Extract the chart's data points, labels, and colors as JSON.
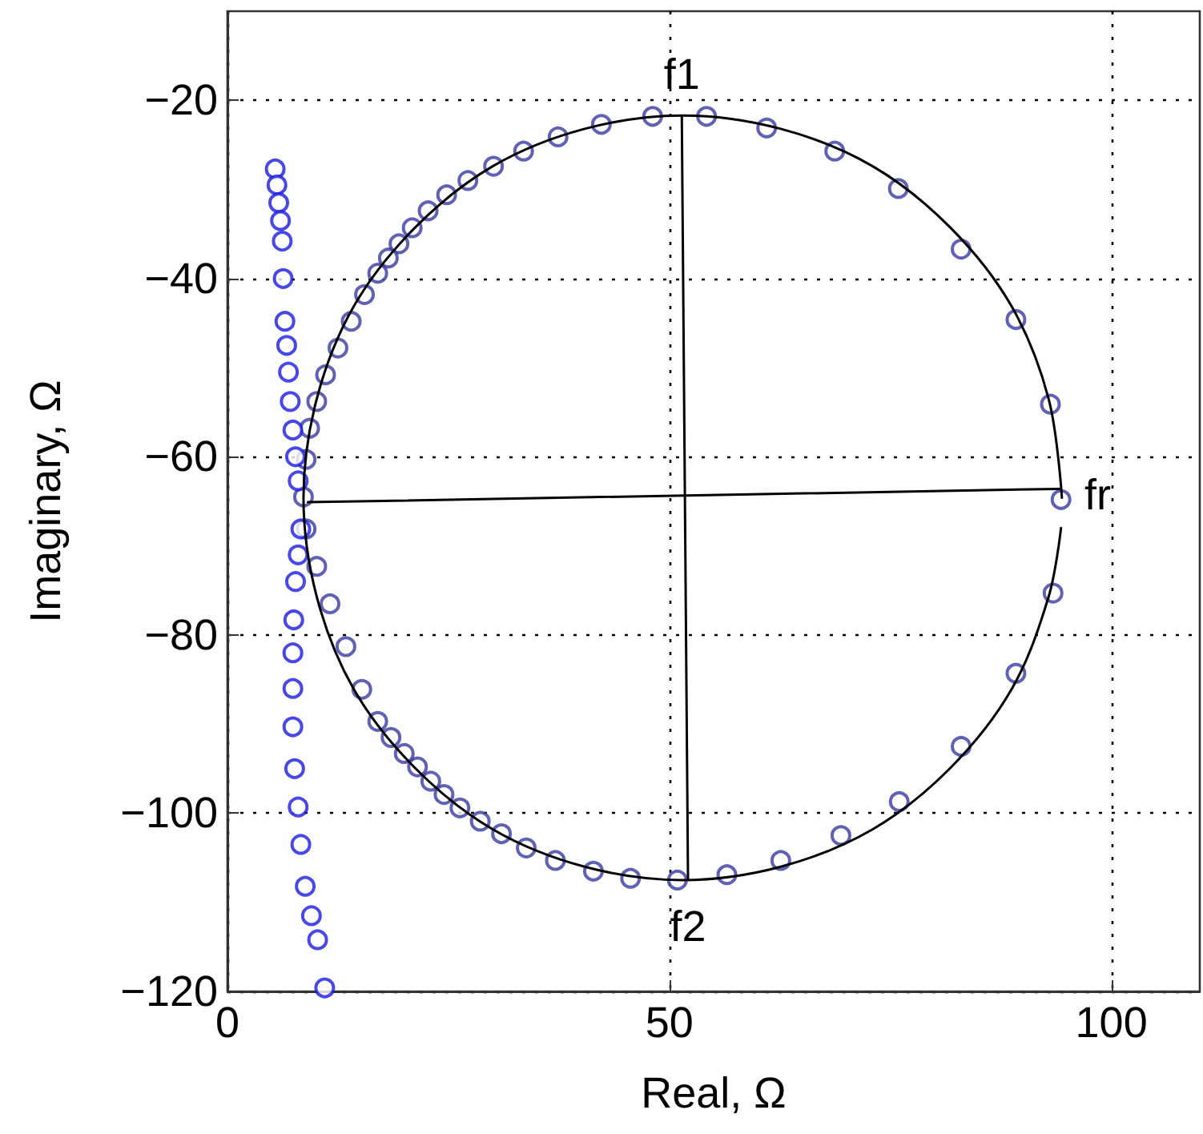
{
  "chart_data": {
    "type": "scatter",
    "xlabel": "Real, Ω",
    "ylabel": "Imaginary, Ω",
    "xlim": [
      0,
      110
    ],
    "xticks": [
      0,
      50,
      100
    ],
    "ylim": [
      -120,
      -10
    ],
    "yticks": [
      -120,
      -100,
      -80,
      -60,
      -40,
      -20
    ],
    "grid": true,
    "marker": "circle",
    "series": [
      {
        "color": "#3a3aa0",
        "x": [
          48.1,
          54.2,
          42.3,
          37.4,
          33.5,
          30.1,
          27.2,
          24.8,
          22.7,
          20.9,
          19.4,
          18.2,
          17.0,
          15.5,
          14.0,
          12.5,
          11.1,
          10.1,
          9.3,
          8.9,
          8.6,
          61.0,
          68.7,
          75.9,
          83.0,
          89.2,
          93.1,
          94.3,
          93.4,
          89.2,
          83.0,
          76.0,
          69.4,
          62.6,
          56.5,
          50.9,
          45.6,
          41.4,
          37.1,
          33.8,
          31.0,
          28.6,
          26.3,
          24.5,
          23.0,
          21.5,
          20.0,
          18.5,
          17.0,
          15.2,
          13.4,
          11.6,
          10.1,
          8.9
        ],
        "values": [
          -21.8,
          -21.8,
          -22.7,
          -24.1,
          -25.7,
          -27.4,
          -29.0,
          -30.6,
          -32.4,
          -34.3,
          -36.1,
          -37.7,
          -39.4,
          -41.8,
          -44.8,
          -47.8,
          -50.8,
          -53.8,
          -56.8,
          -60.3,
          -64.5,
          -23.1,
          -25.7,
          -29.9,
          -36.7,
          -44.6,
          -54.1,
          -64.8,
          -75.3,
          -84.3,
          -92.5,
          -98.7,
          -102.5,
          -105.3,
          -106.9,
          -107.5,
          -107.3,
          -106.5,
          -105.3,
          -103.9,
          -102.3,
          -100.9,
          -99.4,
          -97.9,
          -96.4,
          -94.8,
          -93.3,
          -91.5,
          -89.7,
          -86.1,
          -81.3,
          -76.5,
          -72.3,
          -68.1
        ]
      },
      {
        "color": "#1a1ae0",
        "x": [
          5.4,
          5.6,
          5.8,
          6.0,
          6.2,
          6.3,
          6.5,
          6.7,
          6.9,
          7.1,
          7.4,
          7.7,
          8.0,
          8.3,
          8.0,
          7.7,
          7.5,
          7.4,
          7.4,
          7.4,
          7.6,
          8.0,
          8.3,
          8.8,
          9.5,
          10.2,
          11.0
        ],
        "values": [
          -27.7,
          -29.5,
          -31.5,
          -33.5,
          -35.8,
          -40.0,
          -44.8,
          -47.5,
          -50.5,
          -53.8,
          -57.0,
          -60.0,
          -62.7,
          -68.1,
          -71.0,
          -74.0,
          -78.3,
          -82.0,
          -86.0,
          -90.3,
          -95.0,
          -99.3,
          -103.5,
          -108.2,
          -111.5,
          -114.2,
          -119.6
        ]
      },
      {
        "type": "line",
        "color": "#000000",
        "marker": "none",
        "x": [
          94.4,
          92.9,
          88.7,
          81.8,
          73.0,
          62.6,
          51.5,
          40.4,
          30.0,
          21.2,
          14.3,
          10.1,
          8.6,
          10.1,
          14.3,
          21.2,
          30.0,
          40.4,
          51.5,
          62.6,
          73.0,
          81.8,
          88.7,
          92.9,
          94.3
        ],
        "values": [
          -64.6,
          -53.5,
          -43.1,
          -34.3,
          -27.4,
          -23.2,
          -21.7,
          -23.2,
          -27.4,
          -34.3,
          -43.1,
          -53.5,
          -64.6,
          -75.7,
          -86.1,
          -94.9,
          -101.8,
          -106.0,
          -107.5,
          -106.0,
          -101.8,
          -94.9,
          -86.1,
          -75.7,
          -68.0
        ]
      },
      {
        "type": "line",
        "color": "#000000",
        "marker": "none",
        "x": [
          9.1,
          94.1
        ],
        "values": [
          -65.1,
          -63.6
        ]
      },
      {
        "type": "line",
        "color": "#000000",
        "marker": "none",
        "x": [
          51.4,
          52.1
        ],
        "values": [
          -21.8,
          -107.3
        ]
      }
    ],
    "annotations": [
      {
        "text": "f1",
        "x": 51.4,
        "y": -21.8
      },
      {
        "text": "f2",
        "x": 52.1,
        "y": -107.3
      },
      {
        "text": "fr",
        "x": 94.1,
        "y": -63.6
      }
    ]
  }
}
